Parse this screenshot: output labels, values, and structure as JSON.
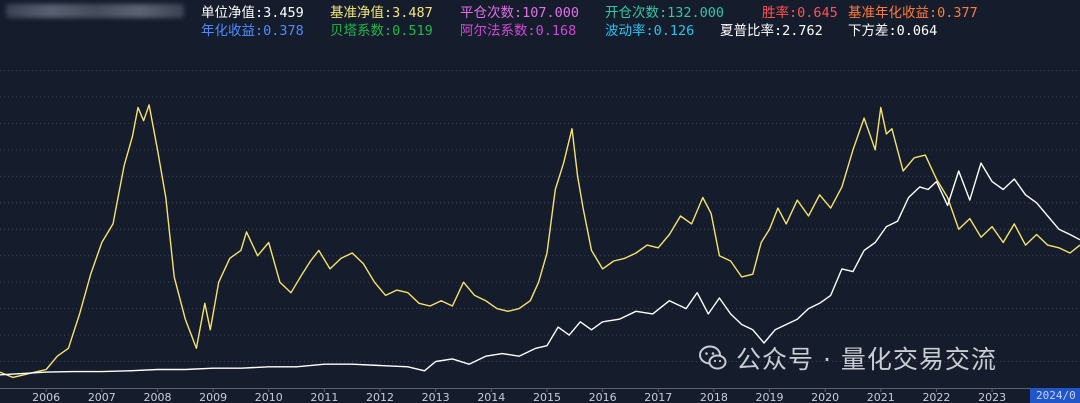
{
  "stats": [
    {
      "label": "单位净值:",
      "value": "3.459",
      "color": "#ffffff"
    },
    {
      "label": "基准净值:",
      "value": "3.487",
      "color": "#f3e77a"
    },
    {
      "label": "平仓次数:",
      "value": "107.000",
      "color": "#e070e6"
    },
    {
      "label": "开仓次数:",
      "value": "132.000",
      "color": "#2fc7a8"
    },
    {
      "label": "胜率:",
      "value": "0.645",
      "color": "#ff5252"
    },
    {
      "label": "基准年化收益:",
      "value": "0.377",
      "color": "#ff7b3a"
    },
    {
      "label": "年化收益:",
      "value": "0.378",
      "color": "#4c8cff"
    },
    {
      "label": "贝塔系数:",
      "value": "0.519",
      "color": "#1fb84a"
    },
    {
      "label": "阿尔法系数:",
      "value": "0.168",
      "color": "#d04ad8"
    },
    {
      "label": "波动率:",
      "value": "0.126",
      "color": "#25c4f0"
    },
    {
      "label": "夏普比率:",
      "value": "2.762",
      "color": "#ffffff"
    },
    {
      "label": "下方差:",
      "value": "0.064",
      "color": "#ffffff"
    }
  ],
  "watermark": {
    "icon": "wechat-icon",
    "text": "公众号 · 量化交易交流"
  },
  "x_highlight_label": "2024/0",
  "colors": {
    "background": "#151c2c",
    "benchmark": "#f6e36b",
    "strategy": "#ffffff",
    "grid": "#3a4255",
    "axis_text": "#c8ccd6"
  },
  "chart_data": {
    "type": "line",
    "title": "",
    "xlabel": "",
    "ylabel": "",
    "x_ticks": [
      "2006",
      "2007",
      "2008",
      "2009",
      "2010",
      "2011",
      "2012",
      "2013",
      "2014",
      "2015",
      "2016",
      "2017",
      "2018",
      "2019",
      "2020",
      "2021",
      "2022",
      "2023"
    ],
    "x_range": [
      2005.17,
      2024.58
    ],
    "y_range": [
      0,
      13
    ],
    "grid": "horizontal dotted",
    "series": [
      {
        "color": "#f6e36b",
        "x": [
          2005.17,
          2005.4,
          2005.6,
          2005.8,
          2006.0,
          2006.2,
          2006.4,
          2006.6,
          2006.8,
          2007.0,
          2007.2,
          2007.4,
          2007.55,
          2007.65,
          2007.75,
          2007.85,
          2008.0,
          2008.15,
          2008.3,
          2008.5,
          2008.7,
          2008.85,
          2008.95,
          2009.1,
          2009.3,
          2009.5,
          2009.6,
          2009.8,
          2010.0,
          2010.2,
          2010.4,
          2010.6,
          2010.75,
          2010.9,
          2011.1,
          2011.3,
          2011.5,
          2011.7,
          2011.9,
          2012.1,
          2012.3,
          2012.5,
          2012.7,
          2012.9,
          2013.1,
          2013.3,
          2013.5,
          2013.7,
          2013.9,
          2014.1,
          2014.3,
          2014.5,
          2014.7,
          2014.85,
          2015.0,
          2015.15,
          2015.3,
          2015.45,
          2015.55,
          2015.65,
          2015.8,
          2016.0,
          2016.2,
          2016.4,
          2016.6,
          2016.8,
          2017.0,
          2017.2,
          2017.4,
          2017.6,
          2017.8,
          2017.95,
          2018.1,
          2018.3,
          2018.5,
          2018.7,
          2018.85,
          2019.0,
          2019.15,
          2019.3,
          2019.5,
          2019.7,
          2019.9,
          2020.1,
          2020.3,
          2020.5,
          2020.7,
          2020.9,
          2021.0,
          2021.1,
          2021.2,
          2021.4,
          2021.6,
          2021.8,
          2022.0,
          2022.2,
          2022.4,
          2022.6,
          2022.8,
          2023.0,
          2023.2,
          2023.4,
          2023.6,
          2023.8,
          2024.0,
          2024.2,
          2024.4,
          2024.58
        ],
        "y": [
          0.6,
          0.4,
          0.5,
          0.6,
          0.7,
          1.2,
          1.5,
          2.8,
          4.3,
          5.5,
          6.2,
          8.4,
          9.5,
          10.6,
          10.1,
          10.7,
          9.0,
          7.2,
          4.2,
          2.6,
          1.5,
          3.2,
          2.2,
          4.0,
          4.9,
          5.2,
          5.9,
          5.0,
          5.5,
          4.0,
          3.6,
          4.3,
          4.8,
          5.2,
          4.5,
          4.9,
          5.1,
          4.7,
          4.0,
          3.5,
          3.7,
          3.6,
          3.2,
          3.1,
          3.3,
          3.1,
          4.0,
          3.5,
          3.3,
          3.0,
          2.9,
          3.0,
          3.3,
          4.0,
          5.1,
          7.5,
          8.5,
          9.8,
          8.0,
          6.8,
          5.2,
          4.5,
          4.8,
          4.9,
          5.1,
          5.4,
          5.3,
          5.8,
          6.5,
          6.2,
          7.2,
          6.6,
          5.0,
          4.8,
          4.2,
          4.3,
          5.5,
          6.0,
          6.8,
          6.2,
          7.1,
          6.5,
          7.3,
          6.8,
          7.6,
          9.0,
          10.2,
          9.0,
          10.6,
          9.6,
          9.8,
          8.2,
          8.7,
          8.8,
          7.9,
          7.2,
          6.0,
          6.4,
          5.7,
          6.1,
          5.5,
          6.2,
          5.4,
          5.8,
          5.4,
          5.3,
          5.1,
          5.4
        ]
      },
      {
        "color": "#ffffff",
        "x": [
          2005.17,
          2005.6,
          2006.0,
          2006.5,
          2007.0,
          2007.5,
          2008.0,
          2008.5,
          2009.0,
          2009.5,
          2010.0,
          2010.5,
          2011.0,
          2011.5,
          2012.0,
          2012.5,
          2012.8,
          2013.0,
          2013.3,
          2013.6,
          2013.9,
          2014.2,
          2014.5,
          2014.8,
          2015.0,
          2015.2,
          2015.4,
          2015.6,
          2015.8,
          2016.0,
          2016.3,
          2016.6,
          2016.9,
          2017.2,
          2017.5,
          2017.7,
          2017.9,
          2018.1,
          2018.3,
          2018.5,
          2018.7,
          2018.9,
          2019.1,
          2019.3,
          2019.5,
          2019.7,
          2019.9,
          2020.1,
          2020.3,
          2020.5,
          2020.7,
          2020.9,
          2021.1,
          2021.3,
          2021.5,
          2021.7,
          2021.85,
          2022.0,
          2022.2,
          2022.4,
          2022.6,
          2022.8,
          2023.0,
          2023.2,
          2023.4,
          2023.6,
          2023.8,
          2024.0,
          2024.2,
          2024.4,
          2024.58
        ],
        "y": [
          0.5,
          0.55,
          0.6,
          0.62,
          0.62,
          0.65,
          0.7,
          0.7,
          0.75,
          0.75,
          0.8,
          0.8,
          0.9,
          0.9,
          0.85,
          0.8,
          0.65,
          1.0,
          1.1,
          0.9,
          1.2,
          1.3,
          1.2,
          1.5,
          1.6,
          2.3,
          2.0,
          2.5,
          2.2,
          2.5,
          2.6,
          2.9,
          2.8,
          3.3,
          3.0,
          3.6,
          2.8,
          3.4,
          2.8,
          2.4,
          2.2,
          1.7,
          2.2,
          2.4,
          2.6,
          3.0,
          3.2,
          3.5,
          4.5,
          4.4,
          5.2,
          5.5,
          6.1,
          6.3,
          7.2,
          7.6,
          7.5,
          7.8,
          6.9,
          8.2,
          7.1,
          8.5,
          7.8,
          7.5,
          7.9,
          7.3,
          7.0,
          6.5,
          6.0,
          5.8,
          5.6
        ]
      }
    ]
  }
}
